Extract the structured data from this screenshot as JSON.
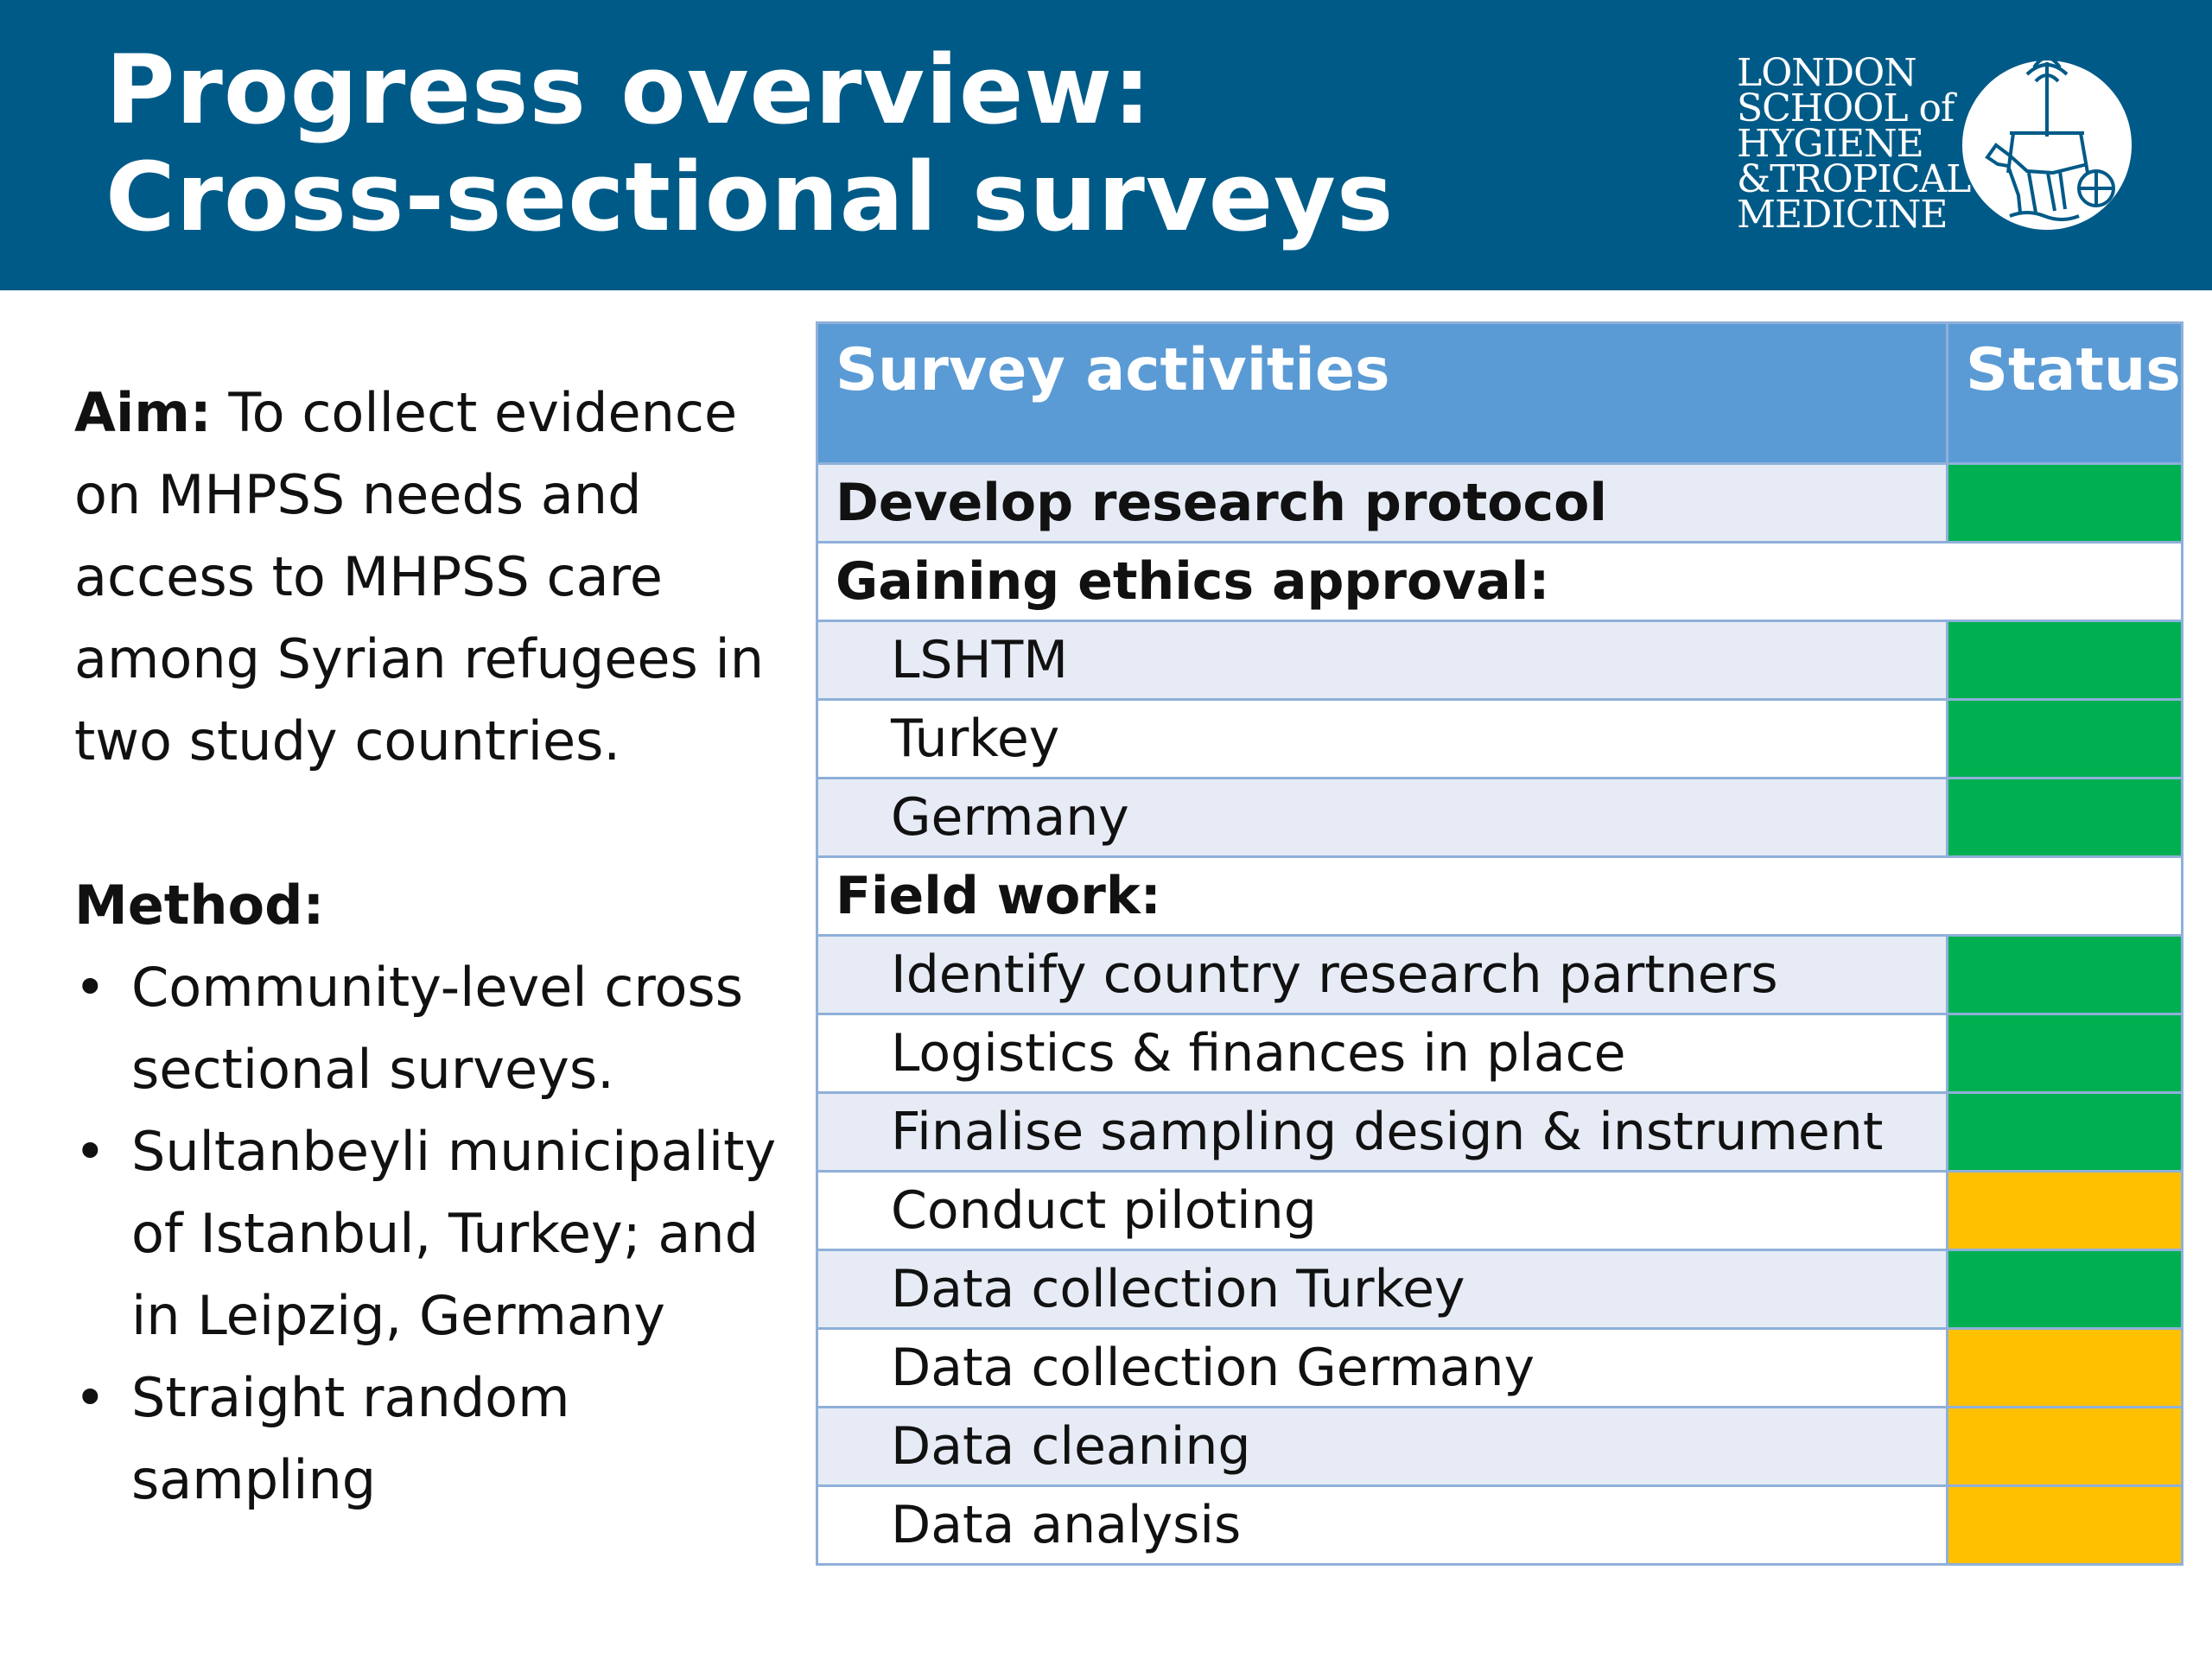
{
  "title": {
    "line1": "Progress overview:",
    "line2": "Cross-sectional surveys"
  },
  "logo": {
    "lines": [
      "LONDON",
      "SCHOOL of",
      "HYGIENE",
      "&TROPICAL",
      "MEDICINE"
    ],
    "icon": "horse-chariot-emblem-icon"
  },
  "colors": {
    "header": "#005a87",
    "table_header": "#5b9bd5",
    "complete": "#00b050",
    "in_progress": "#ffc000"
  },
  "left": {
    "aim_label": "Aim:",
    "aim_text": " To collect evidence on MHPSS needs and access to MHPSS care among Syrian refugees in two study countries.",
    "method_label": "Method:",
    "bullet_symbol": "•",
    "bullets": [
      "Community-level cross sectional surveys.",
      "Sultanbeyli municipality of Istanbul, Turkey;  and in Leipzig, Germany",
      "Straight random sampling"
    ]
  },
  "table": {
    "headers": {
      "activity": "Survey activities",
      "status": "Status"
    },
    "rows": [
      {
        "label": "Develop research protocol",
        "level": "section",
        "shaded": true,
        "status": "complete"
      },
      {
        "label": "Gaining ethics approval:",
        "level": "section",
        "shaded": false,
        "status": ""
      },
      {
        "label": "LSHTM",
        "level": "sub",
        "shaded": true,
        "status": "complete"
      },
      {
        "label": "Turkey",
        "level": "sub",
        "shaded": false,
        "status": "complete"
      },
      {
        "label": "Germany",
        "level": "sub",
        "shaded": true,
        "status": "complete"
      },
      {
        "label": "Field work:",
        "level": "section",
        "shaded": false,
        "status": ""
      },
      {
        "label": "Identify country research partners",
        "level": "sub",
        "shaded": true,
        "status": "complete"
      },
      {
        "label": "Logistics & finances in place",
        "level": "sub",
        "shaded": false,
        "status": "complete"
      },
      {
        "label": "Finalise sampling design & instrument",
        "level": "sub",
        "shaded": true,
        "status": "complete"
      },
      {
        "label": "Conduct piloting",
        "level": "sub",
        "shaded": false,
        "status": "in_progress"
      },
      {
        "label": "Data collection Turkey",
        "level": "sub",
        "shaded": true,
        "status": "complete"
      },
      {
        "label": "Data collection Germany",
        "level": "sub",
        "shaded": false,
        "status": "in_progress"
      },
      {
        "label": "Data cleaning",
        "level": "sub",
        "shaded": true,
        "status": "in_progress"
      },
      {
        "label": "Data analysis",
        "level": "sub",
        "shaded": false,
        "status": "in_progress"
      }
    ]
  }
}
